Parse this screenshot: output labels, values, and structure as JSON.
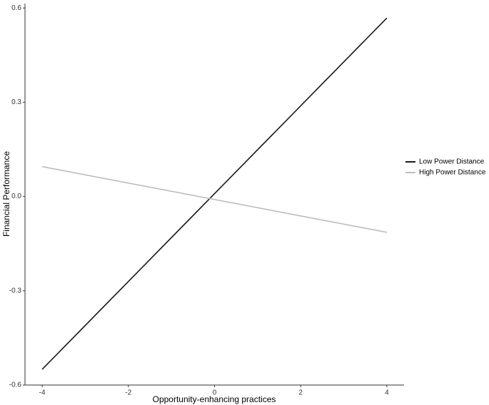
{
  "chart_data": {
    "type": "line",
    "x_label": "Opportunity-enhancing practices",
    "y_label": "Financial Performance",
    "x": [
      -4,
      4
    ],
    "series": [
      {
        "name": "Low Power Distance",
        "color": "#1a1a1a",
        "values": [
          -0.55,
          0.568
        ]
      },
      {
        "name": "High Power Distance",
        "color": "#bdbdbd",
        "values": [
          0.095,
          -0.114
        ]
      }
    ],
    "xlim": [
      -4.4,
      4.4
    ],
    "xticks": [
      -4,
      -2,
      0,
      2,
      4
    ],
    "ylim": [
      -0.6,
      0.614
    ],
    "yticks": [
      0.6,
      0.3,
      {
        "value": 0,
        "label": "0.0"
      },
      -0.3,
      -0.6
    ],
    "grid": false,
    "legend": "right"
  }
}
